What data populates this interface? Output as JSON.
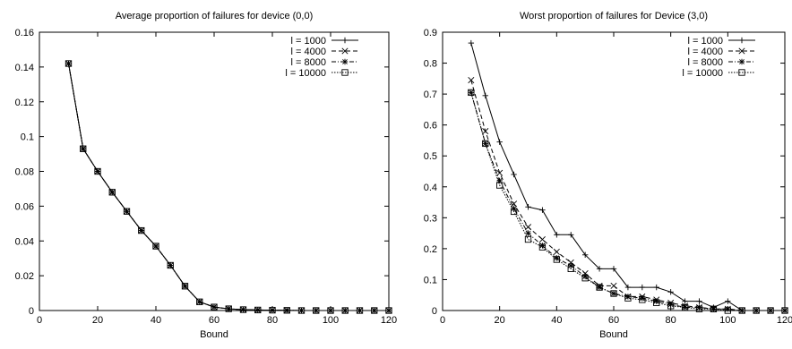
{
  "chart_data": [
    {
      "type": "line",
      "title": "Average proportion of failures for device (0,0)",
      "xlabel": "Bound",
      "ylabel": "",
      "xlim": [
        0,
        120
      ],
      "ylim": [
        0,
        0.16
      ],
      "xticks": [
        0,
        20,
        40,
        60,
        80,
        100,
        120
      ],
      "xtick_labels": [
        "0",
        "20",
        "40",
        "60",
        "80",
        "100",
        "120"
      ],
      "yticks": [
        0,
        0.02,
        0.04,
        0.06,
        0.08,
        0.1,
        0.12,
        0.14,
        0.16
      ],
      "ytick_labels": [
        "0",
        "0.02",
        "0.04",
        "0.06",
        "0.08",
        "0.1",
        "0.12",
        "0.14",
        "0.16"
      ],
      "legend": "top-right",
      "grid": false,
      "x": [
        10,
        15,
        20,
        25,
        30,
        35,
        40,
        45,
        50,
        55,
        60,
        65,
        70,
        75,
        80,
        85,
        90,
        95,
        100,
        105,
        110,
        115,
        120
      ],
      "series": [
        {
          "name": "l = 1000",
          "marker": "plus",
          "dash": "solid",
          "values": [
            0.142,
            0.093,
            0.08,
            0.068,
            0.057,
            0.046,
            0.037,
            0.026,
            0.014,
            0.005,
            0.002,
            0.001,
            0.0005,
            0.0003,
            0.0002,
            0.0001,
            0.0,
            0.0,
            0.0,
            0.0,
            0.0,
            0.0,
            0.0
          ]
        },
        {
          "name": "l = 4000",
          "marker": "x",
          "dash": "dashed",
          "values": [
            0.142,
            0.093,
            0.08,
            0.068,
            0.057,
            0.046,
            0.037,
            0.026,
            0.014,
            0.005,
            0.002,
            0.001,
            0.0005,
            0.0003,
            0.0002,
            0.0001,
            0.0,
            0.0,
            0.0,
            0.0,
            0.0,
            0.0,
            0.0
          ]
        },
        {
          "name": "l = 8000",
          "marker": "star",
          "dash": "dashdot",
          "values": [
            0.142,
            0.093,
            0.08,
            0.068,
            0.057,
            0.046,
            0.037,
            0.026,
            0.014,
            0.005,
            0.002,
            0.001,
            0.0005,
            0.0003,
            0.0002,
            0.0001,
            0.0,
            0.0,
            0.0,
            0.0,
            0.0,
            0.0,
            0.0
          ]
        },
        {
          "name": "l = 10000",
          "marker": "square",
          "dash": "dotted",
          "values": [
            0.142,
            0.093,
            0.08,
            0.068,
            0.057,
            0.046,
            0.037,
            0.026,
            0.014,
            0.005,
            0.002,
            0.001,
            0.0005,
            0.0003,
            0.0002,
            0.0001,
            0.0,
            0.0,
            0.0,
            0.0,
            0.0,
            0.0,
            0.0
          ]
        }
      ]
    },
    {
      "type": "line",
      "title": "Worst proportion of failures for Device (3,0)",
      "xlabel": "Bound",
      "ylabel": "",
      "xlim": [
        0,
        120
      ],
      "ylim": [
        0,
        0.9
      ],
      "xticks": [
        0,
        20,
        40,
        60,
        80,
        100,
        120
      ],
      "xtick_labels": [
        "0",
        "20",
        "40",
        "60",
        "80",
        "100",
        "120"
      ],
      "yticks": [
        0,
        0.1,
        0.2,
        0.3,
        0.4,
        0.5,
        0.6,
        0.7,
        0.8,
        0.9
      ],
      "ytick_labels": [
        "0",
        "0.1",
        "0.2",
        "0.3",
        "0.4",
        "0.5",
        "0.6",
        "0.7",
        "0.8",
        "0.9"
      ],
      "legend": "top-right",
      "grid": false,
      "x": [
        10,
        15,
        20,
        25,
        30,
        35,
        40,
        45,
        50,
        55,
        60,
        65,
        70,
        75,
        80,
        85,
        90,
        95,
        100,
        105,
        110,
        115,
        120
      ],
      "series": [
        {
          "name": "l = 1000",
          "marker": "plus",
          "dash": "solid",
          "values": [
            0.865,
            0.695,
            0.545,
            0.44,
            0.335,
            0.325,
            0.245,
            0.245,
            0.18,
            0.135,
            0.135,
            0.075,
            0.075,
            0.075,
            0.06,
            0.03,
            0.03,
            0.01,
            0.03,
            0.0,
            0.0,
            0.0,
            0.0
          ]
        },
        {
          "name": "l = 4000",
          "marker": "x",
          "dash": "dashed",
          "values": [
            0.745,
            0.58,
            0.445,
            0.345,
            0.27,
            0.23,
            0.19,
            0.155,
            0.12,
            0.08,
            0.08,
            0.045,
            0.045,
            0.035,
            0.025,
            0.015,
            0.01,
            0.005,
            0.005,
            0.0,
            0.0,
            0.0,
            0.0
          ]
        },
        {
          "name": "l = 8000",
          "marker": "star",
          "dash": "dashdot",
          "values": [
            0.705,
            0.54,
            0.42,
            0.33,
            0.25,
            0.21,
            0.17,
            0.145,
            0.11,
            0.075,
            0.055,
            0.045,
            0.04,
            0.03,
            0.02,
            0.01,
            0.01,
            0.005,
            0.005,
            0.0,
            0.0,
            0.0,
            0.0
          ]
        },
        {
          "name": "l = 10000",
          "marker": "square",
          "dash": "dotted",
          "values": [
            0.705,
            0.54,
            0.405,
            0.32,
            0.23,
            0.205,
            0.165,
            0.135,
            0.105,
            0.075,
            0.055,
            0.04,
            0.035,
            0.025,
            0.015,
            0.01,
            0.005,
            0.005,
            0.0,
            0.0,
            0.0,
            0.0,
            0.0
          ]
        }
      ]
    }
  ]
}
